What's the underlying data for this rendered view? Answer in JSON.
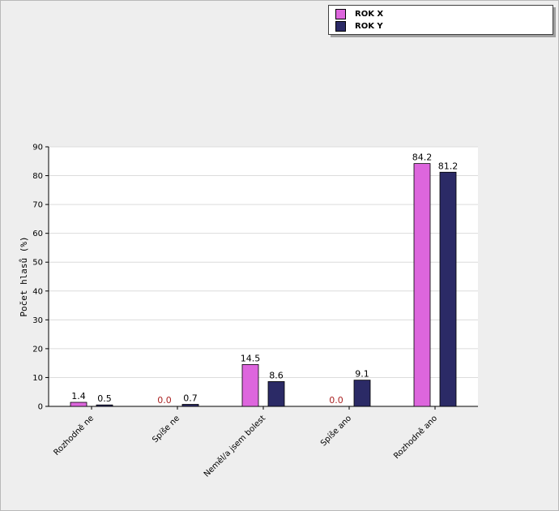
{
  "chart_data": {
    "type": "bar",
    "title": "",
    "xlabel": "",
    "ylabel": "Počet hlasů (%)",
    "ylim": [
      0,
      90
    ],
    "yticks": [
      0,
      10,
      20,
      30,
      40,
      50,
      60,
      70,
      80,
      90
    ],
    "categories": [
      "Rozhodně ne",
      "Spíše ne",
      "Neměl/a jsem bolest",
      "Spíše ano",
      "Rozhodně ano"
    ],
    "series": [
      {
        "name": "ROK X",
        "color": "#dd66dd",
        "values": [
          1.4,
          0.0,
          14.5,
          0.0,
          84.2
        ],
        "labels": [
          "1.4",
          "0.0",
          "14.5",
          "0.0",
          "84.2"
        ]
      },
      {
        "name": "ROK Y",
        "color": "#2b2a66",
        "values": [
          0.5,
          0.7,
          8.6,
          9.1,
          81.2
        ],
        "labels": [
          "0.5",
          "0.7",
          "8.6",
          "9.1",
          "81.2"
        ]
      }
    ],
    "zero_label_color": "#aa2222",
    "grid": true,
    "legend_position": "top-right"
  }
}
